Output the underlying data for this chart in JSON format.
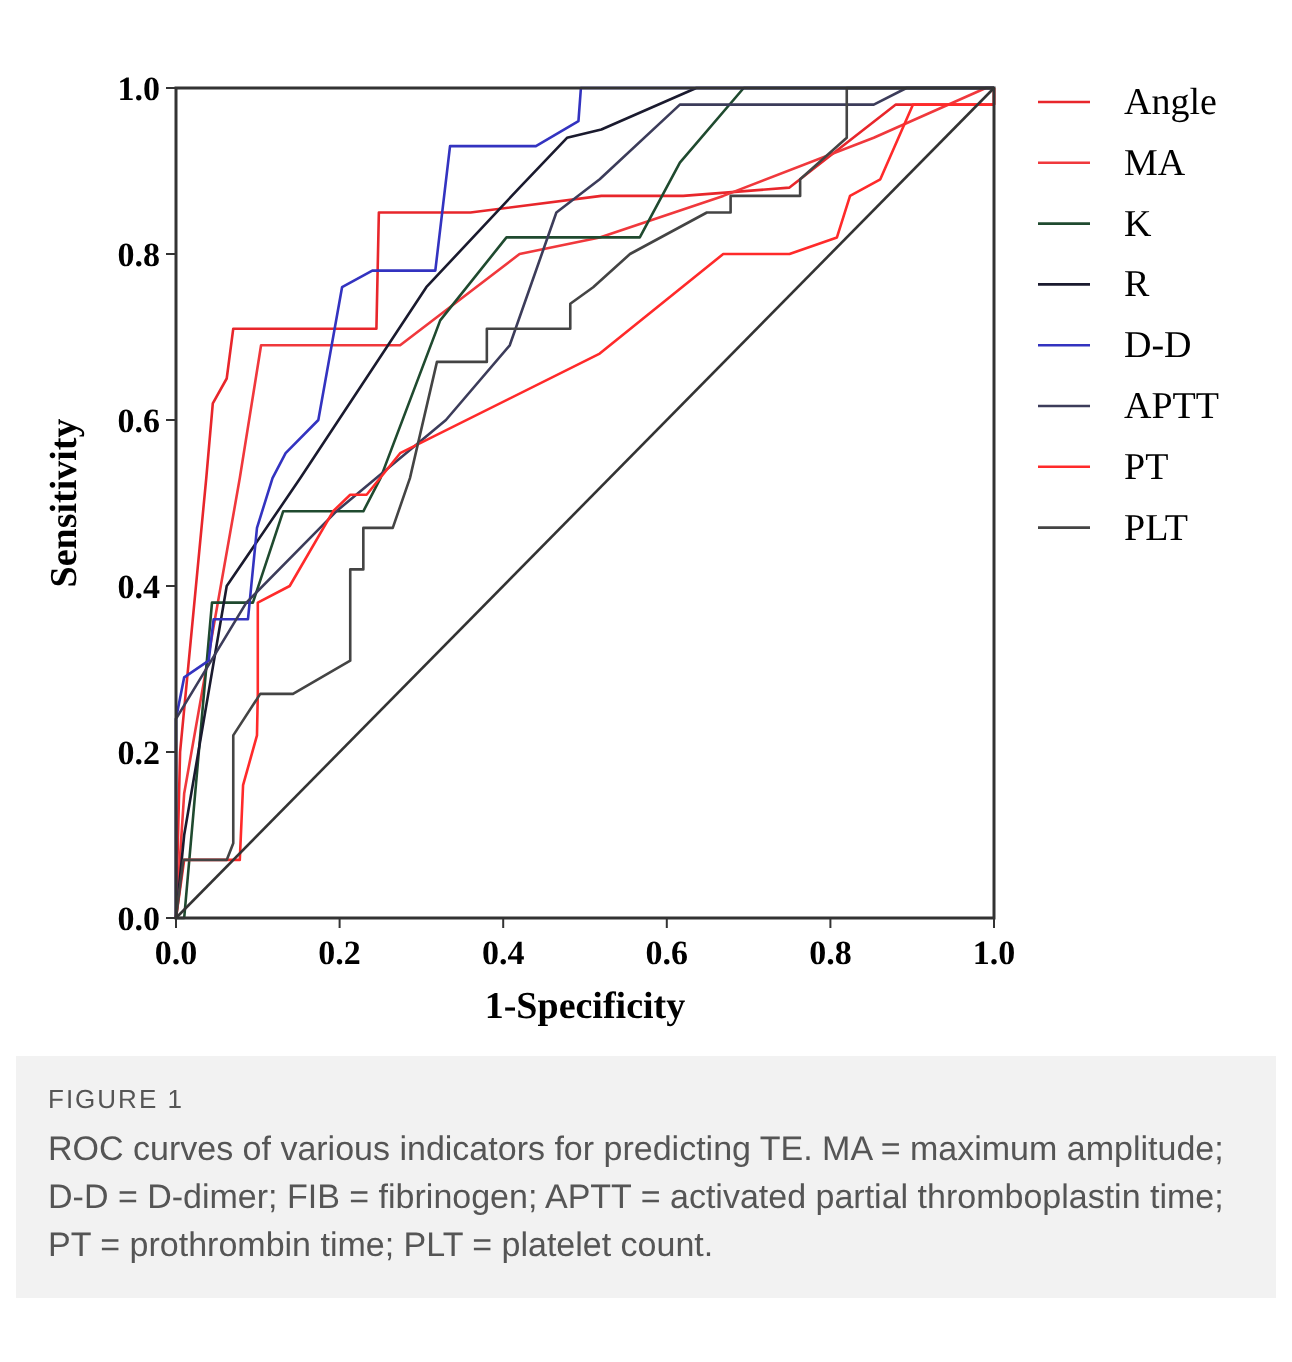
{
  "chart_data": {
    "type": "line",
    "xlabel": "1-Specificity",
    "ylabel": "Sensitivity",
    "xlim": [
      0,
      1
    ],
    "ylim": [
      0,
      1
    ],
    "xticks": [
      {
        "value": 0,
        "label": "0.0"
      },
      {
        "value": 0.2,
        "label": "0.2"
      },
      {
        "value": 0.4,
        "label": "0.4"
      },
      {
        "value": 0.6,
        "label": "0.6"
      },
      {
        "value": 0.8,
        "label": "0.8"
      },
      {
        "value": 1,
        "label": "1.0"
      }
    ],
    "yticks": [
      {
        "value": 0,
        "label": "0.0"
      },
      {
        "value": 0.2,
        "label": "0.2"
      },
      {
        "value": 0.4,
        "label": "0.4"
      },
      {
        "value": 0.6,
        "label": "0.6"
      },
      {
        "value": 0.8,
        "label": "0.8"
      },
      {
        "value": 1,
        "label": "1.0"
      }
    ],
    "grid": false,
    "legend": "right",
    "marker": "none",
    "line_style": "solid",
    "series": [
      {
        "name": "Angle",
        "color": "#e8262b",
        "x": [
          0,
          0.005,
          0.037,
          0.045,
          0.062,
          0.07,
          0.245,
          0.248,
          0.36,
          0.52,
          0.62,
          0.75,
          0.88,
          1,
          1
        ],
        "values": [
          0,
          0.2,
          0.53,
          0.62,
          0.65,
          0.71,
          0.71,
          0.85,
          0.85,
          0.87,
          0.87,
          0.88,
          0.98,
          0.98,
          1
        ]
      },
      {
        "name": "MA",
        "color": "#f0383c",
        "x": [
          0,
          0.01,
          0.078,
          0.104,
          0.274,
          0.42,
          0.518,
          0.669,
          0.853,
          0.99,
          1
        ],
        "values": [
          0,
          0.15,
          0.53,
          0.69,
          0.69,
          0.8,
          0.82,
          0.87,
          0.94,
          1,
          1
        ]
      },
      {
        "name": "K",
        "color": "#1f4a2f",
        "x": [
          0,
          0.01,
          0.044,
          0.094,
          0.131,
          0.229,
          0.25,
          0.323,
          0.404,
          0.567,
          0.616,
          0.694,
          1
        ],
        "values": [
          0,
          0,
          0.38,
          0.38,
          0.49,
          0.49,
          0.53,
          0.72,
          0.82,
          0.82,
          0.91,
          1,
          1
        ]
      },
      {
        "name": "R",
        "color": "#1a1a2e",
        "x": [
          0,
          0.01,
          0.062,
          0.152,
          0.306,
          0.42,
          0.478,
          0.52,
          0.636,
          1
        ],
        "values": [
          0,
          0.1,
          0.4,
          0.53,
          0.76,
          0.88,
          0.94,
          0.95,
          1,
          1
        ]
      },
      {
        "name": "D-D",
        "color": "#3333c0",
        "x": [
          0,
          0,
          0.01,
          0.04,
          0.046,
          0.088,
          0.099,
          0.118,
          0.134,
          0.174,
          0.203,
          0.24,
          0.317,
          0.335,
          0.44,
          0.492,
          0.495,
          1
        ],
        "values": [
          0,
          0.24,
          0.29,
          0.31,
          0.36,
          0.36,
          0.47,
          0.53,
          0.56,
          0.6,
          0.76,
          0.78,
          0.78,
          0.93,
          0.93,
          0.96,
          1,
          1
        ]
      },
      {
        "name": "APTT",
        "color": "#3c3c5a",
        "x": [
          0,
          0,
          0.086,
          0.196,
          0.33,
          0.408,
          0.465,
          0.518,
          0.616,
          0.853,
          0.893,
          1
        ],
        "values": [
          0,
          0.24,
          0.38,
          0.49,
          0.6,
          0.69,
          0.85,
          0.89,
          0.98,
          0.98,
          1,
          1
        ]
      },
      {
        "name": "PT",
        "color": "#ff2a2a",
        "x": [
          0,
          0.01,
          0.046,
          0.078,
          0.082,
          0.099,
          0.1,
          0.1,
          0.139,
          0.192,
          0.213,
          0.233,
          0.274,
          0.518,
          0.669,
          0.75,
          0.808,
          0.824,
          0.861,
          0.901,
          1,
          1
        ],
        "values": [
          0,
          0.07,
          0.07,
          0.07,
          0.16,
          0.22,
          0.27,
          0.38,
          0.4,
          0.49,
          0.51,
          0.51,
          0.56,
          0.68,
          0.8,
          0.8,
          0.82,
          0.87,
          0.89,
          0.98,
          0.98,
          1
        ]
      },
      {
        "name": "PLT",
        "color": "#444444",
        "x": [
          0,
          0.009,
          0.062,
          0.07,
          0.07,
          0.103,
          0.143,
          0.213,
          0.213,
          0.229,
          0.229,
          0.265,
          0.286,
          0.319,
          0.38,
          0.38,
          0.482,
          0.482,
          0.51,
          0.555,
          0.649,
          0.678,
          0.678,
          0.763,
          0.763,
          0.82,
          0.82,
          1
        ],
        "values": [
          0,
          0.07,
          0.07,
          0.09,
          0.22,
          0.27,
          0.27,
          0.31,
          0.42,
          0.42,
          0.47,
          0.47,
          0.53,
          0.67,
          0.67,
          0.71,
          0.71,
          0.74,
          0.76,
          0.8,
          0.85,
          0.85,
          0.87,
          0.87,
          0.89,
          0.94,
          1,
          1
        ]
      },
      {
        "type": "line",
        "color": "#333333",
        "x": [
          0,
          1
        ],
        "values": [
          0,
          1
        ]
      }
    ],
    "annotations": [
      "FIGURE 1",
      "ROC curves of various indicators for predicting TE. MA = maximum amplitude; D-D = D-dimer; FIB = fibrinogen; APTT = activated partial thromboplastin time; PT = prothrombin time; PLT = platelet count."
    ]
  }
}
